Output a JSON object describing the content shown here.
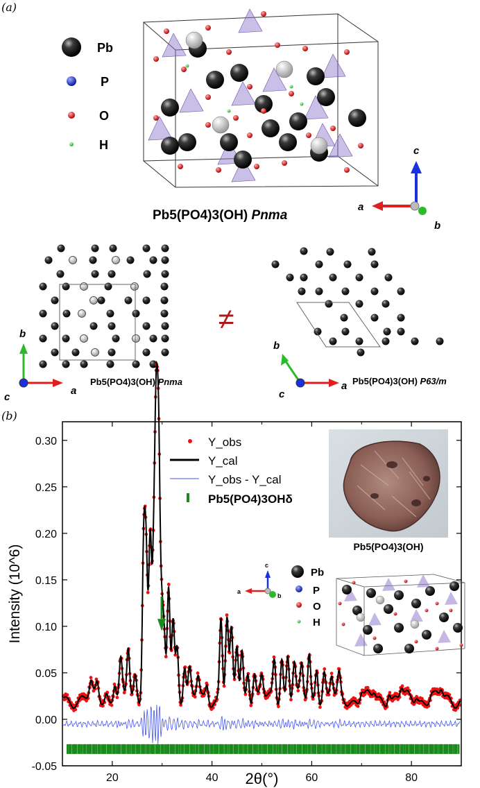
{
  "panel_a": {
    "label": "(a)",
    "legend": [
      {
        "symbol": "Pb",
        "color": "#1a1a1a"
      },
      {
        "symbol": "P",
        "color": "#1f2fd0"
      },
      {
        "symbol": "O",
        "color": "#d42020"
      },
      {
        "symbol": "H",
        "color": "#33cc33"
      }
    ],
    "main_caption": {
      "formula": "Pb5(PO4)3(OH)",
      "group": "Pnma"
    },
    "axes_main": {
      "a": "a",
      "b": "b",
      "c": "c"
    },
    "left_caption": {
      "formula": "Pb5(PO4)3(OH)",
      "group": "Pnma"
    },
    "right_caption": {
      "formula": "Pb5(PO4)3(OH)",
      "group": "P63/m"
    },
    "neq": "≠",
    "axes_left": {
      "a": "a",
      "b": "b",
      "c": "c"
    },
    "axes_right": {
      "a": "a",
      "b": "b",
      "c": "c"
    }
  },
  "panel_b": {
    "label": "(b)",
    "photo_caption": "Pb5(PO4)3(OH)",
    "inset_legend": [
      "Pb",
      "P",
      "O",
      "H"
    ],
    "inset_axes": {
      "a": "a",
      "b": "b",
      "c": "c"
    }
  },
  "chart_data": {
    "type": "line",
    "xlabel": "2θ(°)",
    "ylabel": "Intensity (10^6)",
    "xlim": [
      10,
      90
    ],
    "ylim": [
      -0.05,
      0.32
    ],
    "xticks": [
      20,
      40,
      60,
      80
    ],
    "yticks": [
      -0.05,
      0.0,
      0.05,
      0.1,
      0.15,
      0.2,
      0.25,
      0.3
    ],
    "legend": [
      "Y_obs",
      "Y_cal",
      "Y_obs - Y_cal",
      "Pb5(PO4)3OHδ"
    ],
    "colors": {
      "obs": "#ee1111",
      "cal": "#000000",
      "diff": "#4455ee",
      "bragg": "#1a8a1a"
    },
    "baseline": 0.022,
    "peaks": [
      [
        15.7,
        0.036
      ],
      [
        17.0,
        0.038
      ],
      [
        18.8,
        0.03
      ],
      [
        20.5,
        0.042
      ],
      [
        21.7,
        0.06
      ],
      [
        23.2,
        0.075
      ],
      [
        24.6,
        0.045
      ],
      [
        26.3,
        0.19
      ],
      [
        26.8,
        0.17
      ],
      [
        27.6,
        0.195
      ],
      [
        28.3,
        0.16
      ],
      [
        28.8,
        0.295
      ],
      [
        29.3,
        0.27
      ],
      [
        29.9,
        0.1
      ],
      [
        30.4,
        0.08
      ],
      [
        31.3,
        0.145
      ],
      [
        32.2,
        0.11
      ],
      [
        33.0,
        0.08
      ],
      [
        34.5,
        0.06
      ],
      [
        35.5,
        0.05
      ],
      [
        37.2,
        0.045
      ],
      [
        39.0,
        0.04
      ],
      [
        41.8,
        0.11
      ],
      [
        43.0,
        0.105
      ],
      [
        43.9,
        0.09
      ],
      [
        45.0,
        0.08
      ],
      [
        46.0,
        0.075
      ],
      [
        47.2,
        0.055
      ],
      [
        48.5,
        0.05
      ],
      [
        50.0,
        0.045
      ],
      [
        52.5,
        0.065
      ],
      [
        54.0,
        0.07
      ],
      [
        55.2,
        0.07
      ],
      [
        56.5,
        0.06
      ],
      [
        58.0,
        0.055
      ],
      [
        59.5,
        0.07
      ],
      [
        61.0,
        0.06
      ],
      [
        62.5,
        0.05
      ],
      [
        64.0,
        0.045
      ],
      [
        65.5,
        0.045
      ],
      [
        70.0,
        0.03
      ],
      [
        72.5,
        0.028
      ],
      [
        75.5,
        0.034
      ],
      [
        78.0,
        0.032
      ],
      [
        81.0,
        0.028
      ],
      [
        84.0,
        0.026
      ],
      [
        86.0,
        0.03
      ]
    ],
    "diff_offset": -0.005,
    "bragg_y": -0.032,
    "arrow_x": 29.9
  }
}
